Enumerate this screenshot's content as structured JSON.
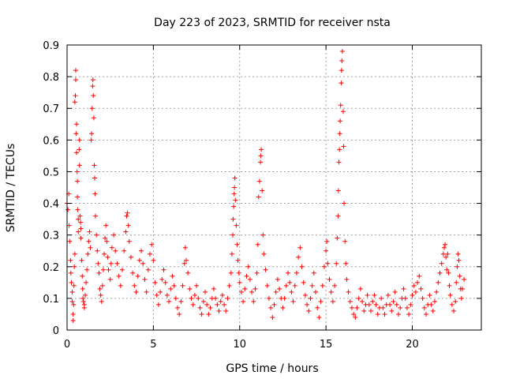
{
  "chart_data": {
    "type": "scatter",
    "title": "Day 223 of 2023, SRMTID for receiver nsta",
    "xlabel": "GPS time / hours",
    "ylabel": "SRMTID / TECUs",
    "xlim": [
      0,
      24
    ],
    "ylim": [
      0,
      0.9
    ],
    "xticks": [
      0,
      5,
      10,
      15,
      20
    ],
    "xtick_labels": [
      "0",
      "5",
      "10",
      "15",
      "20"
    ],
    "yticks": [
      0,
      0.1,
      0.2,
      0.3,
      0.4,
      0.5,
      0.6,
      0.7,
      0.8,
      0.9
    ],
    "ytick_labels": [
      "0",
      "0.1",
      "0.2",
      "0.3",
      "0.4",
      "0.5",
      "0.6",
      "0.7",
      "0.8",
      "0.9"
    ],
    "grid": true,
    "marker": "plus",
    "series": [
      {
        "name": "SRMTID",
        "color": "#ff0000",
        "points": [
          [
            0.0,
            0.4
          ],
          [
            0.05,
            0.38
          ],
          [
            0.1,
            0.43
          ],
          [
            0.12,
            0.33
          ],
          [
            0.15,
            0.28
          ],
          [
            0.2,
            0.22
          ],
          [
            0.22,
            0.18
          ],
          [
            0.25,
            0.15
          ],
          [
            0.3,
            0.12
          ],
          [
            0.3,
            0.09
          ],
          [
            0.35,
            0.05
          ],
          [
            0.35,
            0.03
          ],
          [
            0.38,
            0.08
          ],
          [
            0.4,
            0.14
          ],
          [
            0.42,
            0.2
          ],
          [
            0.45,
            0.24
          ],
          [
            0.45,
            0.72
          ],
          [
            0.48,
            0.74
          ],
          [
            0.5,
            0.79
          ],
          [
            0.5,
            0.82
          ],
          [
            0.52,
            0.62
          ],
          [
            0.55,
            0.65
          ],
          [
            0.55,
            0.56
          ],
          [
            0.58,
            0.5
          ],
          [
            0.6,
            0.47
          ],
          [
            0.6,
            0.42
          ],
          [
            0.62,
            0.38
          ],
          [
            0.65,
            0.35
          ],
          [
            0.65,
            0.31
          ],
          [
            0.7,
            0.57
          ],
          [
            0.72,
            0.6
          ],
          [
            0.72,
            0.52
          ],
          [
            0.75,
            0.36
          ],
          [
            0.78,
            0.34
          ],
          [
            0.8,
            0.32
          ],
          [
            0.8,
            0.29
          ],
          [
            0.85,
            0.22
          ],
          [
            0.88,
            0.17
          ],
          [
            0.9,
            0.13
          ],
          [
            0.92,
            0.1
          ],
          [
            0.95,
            0.09
          ],
          [
            1.0,
            0.08
          ],
          [
            1.0,
            0.07
          ],
          [
            1.05,
            0.11
          ],
          [
            1.1,
            0.15
          ],
          [
            1.15,
            0.19
          ],
          [
            1.2,
            0.24
          ],
          [
            1.25,
            0.28
          ],
          [
            1.3,
            0.31
          ],
          [
            1.35,
            0.26
          ],
          [
            1.4,
            0.6
          ],
          [
            1.42,
            0.62
          ],
          [
            1.45,
            0.7
          ],
          [
            1.48,
            0.77
          ],
          [
            1.5,
            0.79
          ],
          [
            1.52,
            0.74
          ],
          [
            1.55,
            0.67
          ],
          [
            1.58,
            0.52
          ],
          [
            1.6,
            0.48
          ],
          [
            1.62,
            0.43
          ],
          [
            1.65,
            0.36
          ],
          [
            1.7,
            0.3
          ],
          [
            1.75,
            0.25
          ],
          [
            1.8,
            0.21
          ],
          [
            1.85,
            0.18
          ],
          [
            1.9,
            0.13
          ],
          [
            1.95,
            0.11
          ],
          [
            2.0,
            0.09
          ],
          [
            2.05,
            0.14
          ],
          [
            2.1,
            0.19
          ],
          [
            2.15,
            0.24
          ],
          [
            2.2,
            0.29
          ],
          [
            2.25,
            0.33
          ],
          [
            2.3,
            0.28
          ],
          [
            2.35,
            0.23
          ],
          [
            2.4,
            0.19
          ],
          [
            2.5,
            0.16
          ],
          [
            2.55,
            0.21
          ],
          [
            2.6,
            0.26
          ],
          [
            2.7,
            0.3
          ],
          [
            2.8,
            0.25
          ],
          [
            2.9,
            0.21
          ],
          [
            3.0,
            0.17
          ],
          [
            3.1,
            0.14
          ],
          [
            3.2,
            0.19
          ],
          [
            3.3,
            0.25
          ],
          [
            3.4,
            0.31
          ],
          [
            3.45,
            0.36
          ],
          [
            3.5,
            0.37
          ],
          [
            3.55,
            0.33
          ],
          [
            3.6,
            0.28
          ],
          [
            3.7,
            0.23
          ],
          [
            3.8,
            0.18
          ],
          [
            3.9,
            0.14
          ],
          [
            4.0,
            0.12
          ],
          [
            4.1,
            0.17
          ],
          [
            4.2,
            0.22
          ],
          [
            4.3,
            0.25
          ],
          [
            4.4,
            0.21
          ],
          [
            4.5,
            0.16
          ],
          [
            4.6,
            0.12
          ],
          [
            4.7,
            0.19
          ],
          [
            4.8,
            0.24
          ],
          [
            4.9,
            0.27
          ],
          [
            5.0,
            0.22
          ],
          [
            5.1,
            0.15
          ],
          [
            5.2,
            0.11
          ],
          [
            5.3,
            0.08
          ],
          [
            5.4,
            0.12
          ],
          [
            5.5,
            0.16
          ],
          [
            5.6,
            0.19
          ],
          [
            5.7,
            0.15
          ],
          [
            5.8,
            0.11
          ],
          [
            5.9,
            0.09
          ],
          [
            6.0,
            0.13
          ],
          [
            6.1,
            0.17
          ],
          [
            6.2,
            0.14
          ],
          [
            6.3,
            0.1
          ],
          [
            6.4,
            0.07
          ],
          [
            6.5,
            0.05
          ],
          [
            6.6,
            0.09
          ],
          [
            6.7,
            0.14
          ],
          [
            6.8,
            0.21
          ],
          [
            6.85,
            0.26
          ],
          [
            6.9,
            0.22
          ],
          [
            7.0,
            0.18
          ],
          [
            7.1,
            0.13
          ],
          [
            7.2,
            0.1
          ],
          [
            7.3,
            0.08
          ],
          [
            7.4,
            0.11
          ],
          [
            7.5,
            0.14
          ],
          [
            7.6,
            0.1
          ],
          [
            7.7,
            0.07
          ],
          [
            7.8,
            0.05
          ],
          [
            7.9,
            0.09
          ],
          [
            8.0,
            0.12
          ],
          [
            8.1,
            0.08
          ],
          [
            8.2,
            0.05
          ],
          [
            8.3,
            0.07
          ],
          [
            8.4,
            0.1
          ],
          [
            8.5,
            0.13
          ],
          [
            8.6,
            0.1
          ],
          [
            8.7,
            0.08
          ],
          [
            8.8,
            0.06
          ],
          [
            8.9,
            0.09
          ],
          [
            9.0,
            0.11
          ],
          [
            9.1,
            0.08
          ],
          [
            9.2,
            0.06
          ],
          [
            9.3,
            0.1
          ],
          [
            9.4,
            0.14
          ],
          [
            9.5,
            0.18
          ],
          [
            9.55,
            0.24
          ],
          [
            9.6,
            0.3
          ],
          [
            9.62,
            0.35
          ],
          [
            9.65,
            0.39
          ],
          [
            9.68,
            0.43
          ],
          [
            9.7,
            0.45
          ],
          [
            9.72,
            0.48
          ],
          [
            9.75,
            0.41
          ],
          [
            9.8,
            0.33
          ],
          [
            9.85,
            0.27
          ],
          [
            9.9,
            0.22
          ],
          [
            9.95,
            0.18
          ],
          [
            10.0,
            0.15
          ],
          [
            10.1,
            0.12
          ],
          [
            10.2,
            0.09
          ],
          [
            10.3,
            0.13
          ],
          [
            10.4,
            0.17
          ],
          [
            10.5,
            0.2
          ],
          [
            10.6,
            0.16
          ],
          [
            10.7,
            0.12
          ],
          [
            10.8,
            0.09
          ],
          [
            10.9,
            0.13
          ],
          [
            11.0,
            0.18
          ],
          [
            11.05,
            0.27
          ],
          [
            11.1,
            0.42
          ],
          [
            11.15,
            0.47
          ],
          [
            11.2,
            0.53
          ],
          [
            11.22,
            0.55
          ],
          [
            11.25,
            0.57
          ],
          [
            11.3,
            0.44
          ],
          [
            11.35,
            0.3
          ],
          [
            11.4,
            0.24
          ],
          [
            11.5,
            0.19
          ],
          [
            11.6,
            0.14
          ],
          [
            11.7,
            0.1
          ],
          [
            11.8,
            0.07
          ],
          [
            11.9,
            0.04
          ],
          [
            12.0,
            0.08
          ],
          [
            12.1,
            0.12
          ],
          [
            12.2,
            0.16
          ],
          [
            12.3,
            0.13
          ],
          [
            12.4,
            0.1
          ],
          [
            12.5,
            0.07
          ],
          [
            12.6,
            0.1
          ],
          [
            12.7,
            0.14
          ],
          [
            12.8,
            0.18
          ],
          [
            12.9,
            0.15
          ],
          [
            13.0,
            0.12
          ],
          [
            13.1,
            0.09
          ],
          [
            13.2,
            0.14
          ],
          [
            13.3,
            0.18
          ],
          [
            13.4,
            0.23
          ],
          [
            13.5,
            0.26
          ],
          [
            13.6,
            0.2
          ],
          [
            13.7,
            0.15
          ],
          [
            13.8,
            0.11
          ],
          [
            13.9,
            0.08
          ],
          [
            14.0,
            0.06
          ],
          [
            14.1,
            0.1
          ],
          [
            14.2,
            0.14
          ],
          [
            14.3,
            0.18
          ],
          [
            14.4,
            0.12
          ],
          [
            14.5,
            0.07
          ],
          [
            14.6,
            0.04
          ],
          [
            14.7,
            0.09
          ],
          [
            14.8,
            0.14
          ],
          [
            14.9,
            0.2
          ],
          [
            15.0,
            0.25
          ],
          [
            15.05,
            0.28
          ],
          [
            15.1,
            0.21
          ],
          [
            15.2,
            0.16
          ],
          [
            15.3,
            0.12
          ],
          [
            15.4,
            0.09
          ],
          [
            15.5,
            0.14
          ],
          [
            15.6,
            0.21
          ],
          [
            15.65,
            0.29
          ],
          [
            15.7,
            0.36
          ],
          [
            15.72,
            0.44
          ],
          [
            15.75,
            0.53
          ],
          [
            15.78,
            0.57
          ],
          [
            15.8,
            0.62
          ],
          [
            15.82,
            0.66
          ],
          [
            15.85,
            0.71
          ],
          [
            15.88,
            0.78
          ],
          [
            15.9,
            0.82
          ],
          [
            15.92,
            0.85
          ],
          [
            15.95,
            0.88
          ],
          [
            16.0,
            0.69
          ],
          [
            16.02,
            0.58
          ],
          [
            16.05,
            0.4
          ],
          [
            16.1,
            0.28
          ],
          [
            16.15,
            0.21
          ],
          [
            16.2,
            0.16
          ],
          [
            16.3,
            0.12
          ],
          [
            16.4,
            0.09
          ],
          [
            16.5,
            0.07
          ],
          [
            16.6,
            0.05
          ],
          [
            16.7,
            0.04
          ],
          [
            16.8,
            0.07
          ],
          [
            16.9,
            0.1
          ],
          [
            17.0,
            0.13
          ],
          [
            17.1,
            0.09
          ],
          [
            17.2,
            0.06
          ],
          [
            17.3,
            0.08
          ],
          [
            17.4,
            0.11
          ],
          [
            17.5,
            0.08
          ],
          [
            17.6,
            0.06
          ],
          [
            17.7,
            0.09
          ],
          [
            17.8,
            0.11
          ],
          [
            17.9,
            0.08
          ],
          [
            18.0,
            0.05
          ],
          [
            18.1,
            0.07
          ],
          [
            18.2,
            0.1
          ],
          [
            18.3,
            0.07
          ],
          [
            18.4,
            0.05
          ],
          [
            18.5,
            0.08
          ],
          [
            18.6,
            0.11
          ],
          [
            18.7,
            0.08
          ],
          [
            18.8,
            0.06
          ],
          [
            18.9,
            0.09
          ],
          [
            19.0,
            0.12
          ],
          [
            19.1,
            0.08
          ],
          [
            19.2,
            0.05
          ],
          [
            19.3,
            0.07
          ],
          [
            19.4,
            0.1
          ],
          [
            19.5,
            0.13
          ],
          [
            19.6,
            0.1
          ],
          [
            19.7,
            0.07
          ],
          [
            19.8,
            0.05
          ],
          [
            19.9,
            0.08
          ],
          [
            20.0,
            0.11
          ],
          [
            20.1,
            0.14
          ],
          [
            20.2,
            0.12
          ],
          [
            20.3,
            0.15
          ],
          [
            20.4,
            0.17
          ],
          [
            20.5,
            0.13
          ],
          [
            20.6,
            0.1
          ],
          [
            20.7,
            0.07
          ],
          [
            20.8,
            0.05
          ],
          [
            20.9,
            0.08
          ],
          [
            21.0,
            0.11
          ],
          [
            21.1,
            0.08
          ],
          [
            21.2,
            0.06
          ],
          [
            21.3,
            0.09
          ],
          [
            21.4,
            0.12
          ],
          [
            21.5,
            0.15
          ],
          [
            21.6,
            0.18
          ],
          [
            21.7,
            0.21
          ],
          [
            21.8,
            0.24
          ],
          [
            21.85,
            0.26
          ],
          [
            21.9,
            0.27
          ],
          [
            21.95,
            0.23
          ],
          [
            22.0,
            0.19
          ],
          [
            22.05,
            0.24
          ],
          [
            22.1,
            0.18
          ],
          [
            22.15,
            0.14
          ],
          [
            22.2,
            0.11
          ],
          [
            22.3,
            0.08
          ],
          [
            22.4,
            0.06
          ],
          [
            22.5,
            0.09
          ],
          [
            22.55,
            0.15
          ],
          [
            22.6,
            0.2
          ],
          [
            22.65,
            0.24
          ],
          [
            22.7,
            0.22
          ],
          [
            22.75,
            0.17
          ],
          [
            22.8,
            0.13
          ],
          [
            22.85,
            0.1
          ],
          [
            22.9,
            0.13
          ],
          [
            23.0,
            0.16
          ]
        ]
      }
    ]
  }
}
